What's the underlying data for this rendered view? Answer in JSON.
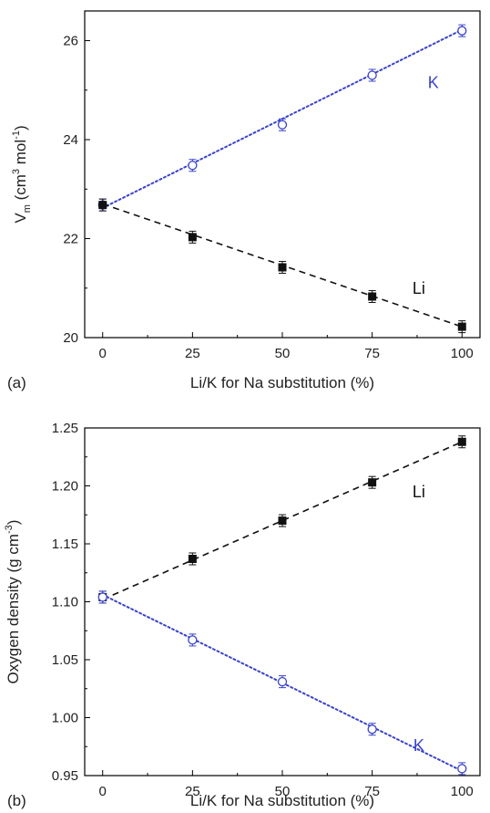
{
  "chart_data": [
    {
      "panel_label": "(a)",
      "type": "line",
      "xlabel": "Li/K for Na substitution (%)",
      "ylabel_main": "V",
      "ylabel_sub": "m",
      "ylabel_unit_a": " (cm",
      "ylabel_sup1": "3",
      "ylabel_unit_b": " mol",
      "ylabel_sup2": "-1",
      "ylabel_close": ")",
      "xlim": [
        -5,
        105
      ],
      "ylim": [
        20,
        26.6
      ],
      "x_ticks": [
        0,
        25,
        50,
        75,
        100
      ],
      "y_ticks": [
        20,
        22,
        24,
        26
      ],
      "y_tick_labels": [
        "20",
        "22",
        "24",
        "26"
      ],
      "grid": false,
      "series": [
        {
          "name": "K",
          "color": "#3a43c8",
          "marker": "open-circle",
          "line": "dotted",
          "x": [
            0,
            25,
            50,
            75,
            100
          ],
          "y": [
            22.68,
            23.48,
            24.3,
            25.3,
            26.2
          ],
          "fit": [
            [
              0,
              22.62
            ],
            [
              100,
              26.22
            ]
          ],
          "label_pos": [
            92,
            25.15
          ]
        },
        {
          "name": "Li",
          "color": "#111111",
          "marker": "filled-square",
          "line": "dashed",
          "x": [
            0,
            25,
            50,
            75,
            100
          ],
          "y": [
            22.68,
            22.03,
            21.42,
            20.83,
            20.22
          ],
          "fit": [
            [
              0,
              22.7
            ],
            [
              100,
              20.22
            ]
          ],
          "label_pos": [
            88,
            21.0
          ]
        }
      ]
    },
    {
      "panel_label": "(b)",
      "type": "line",
      "xlabel": "Li/K for Na substitution (%)",
      "ylabel_main": "Oxygen density",
      "ylabel_sub": "",
      "ylabel_unit_a": " (g cm",
      "ylabel_sup1": "-3",
      "ylabel_unit_b": "",
      "ylabel_sup2": "",
      "ylabel_close": ")",
      "xlim": [
        -5,
        105
      ],
      "ylim": [
        0.95,
        1.25
      ],
      "x_ticks": [
        0,
        25,
        50,
        75,
        100
      ],
      "y_ticks": [
        0.95,
        1.0,
        1.05,
        1.1,
        1.15,
        1.2,
        1.25
      ],
      "y_tick_labels": [
        "0.95",
        "1.00",
        "1.05",
        "1.10",
        "1.15",
        "1.20",
        "1.25"
      ],
      "grid": false,
      "series": [
        {
          "name": "Li",
          "color": "#111111",
          "marker": "filled-square",
          "line": "dashed",
          "x": [
            0,
            25,
            50,
            75,
            100
          ],
          "y": [
            1.104,
            1.137,
            1.17,
            1.203,
            1.238
          ],
          "fit": [
            [
              0,
              1.102
            ],
            [
              100,
              1.238
            ]
          ],
          "label_pos": [
            88,
            1.195
          ]
        },
        {
          "name": "K",
          "color": "#3a43c8",
          "marker": "open-circle",
          "line": "dotted",
          "x": [
            0,
            25,
            50,
            75,
            100
          ],
          "y": [
            1.104,
            1.067,
            1.031,
            0.99,
            0.956
          ],
          "fit": [
            [
              0,
              1.106
            ],
            [
              100,
              0.954
            ]
          ],
          "label_pos": [
            88,
            0.976
          ]
        }
      ]
    }
  ]
}
